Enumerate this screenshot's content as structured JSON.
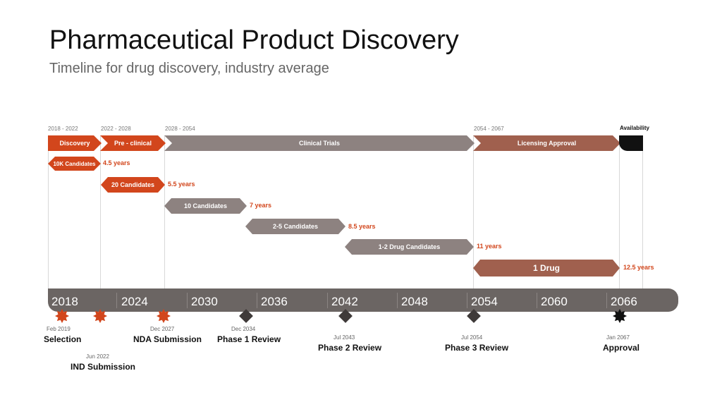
{
  "title": "Pharmaceutical Product Discovery",
  "subtitle": "Timeline for drug discovery, industry average",
  "colors": {
    "orange": "#d2461c",
    "taupe": "#8d8280",
    "brown": "#a0604e",
    "dark": "#6b6563",
    "black": "#111111"
  },
  "phases": [
    {
      "label": "Discovery",
      "range": "2018  -  2022"
    },
    {
      "label": "Pre - clinical",
      "range": "2022  -  2028"
    },
    {
      "label": "Clinical Trials",
      "range": "2028  -  2054"
    },
    {
      "label": "Licensing Approval",
      "range": "2054  -  2067"
    },
    {
      "label": "Availability"
    }
  ],
  "candidates": [
    {
      "label": "10K Candidates",
      "duration": "4.5 years"
    },
    {
      "label": "20 Candidates",
      "duration": "5.5 years"
    },
    {
      "label": "10 Candidates",
      "duration": "7 years"
    },
    {
      "label": "2-5 Candidates",
      "duration": "8.5 years"
    },
    {
      "label": "1-2 Drug Candidates",
      "duration": "11 years"
    },
    {
      "label": "1 Drug",
      "duration": "12.5 years"
    }
  ],
  "years": [
    "2018",
    "2024",
    "2030",
    "2036",
    "2042",
    "2048",
    "2054",
    "2060",
    "2066"
  ],
  "milestones": [
    {
      "date": "Feb 2019",
      "label": "Selection"
    },
    {
      "date": "Jun 2022",
      "label": "IND Submission"
    },
    {
      "date": "Dec 2027",
      "label": "NDA Submission"
    },
    {
      "date": "Dec 2034",
      "label": "Phase 1 Review"
    },
    {
      "date": "Jul 2043",
      "label": "Phase 2 Review"
    },
    {
      "date": "Jul 2054",
      "label": "Phase 3 Review"
    },
    {
      "date": "Jan 2067",
      "label": "Approval"
    }
  ]
}
